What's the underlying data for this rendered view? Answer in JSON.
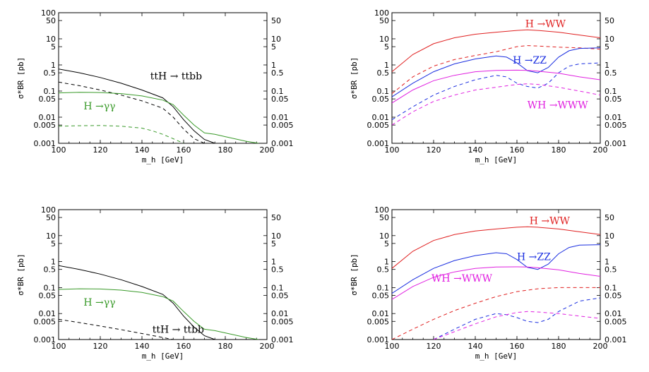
{
  "chart_data": [
    {
      "type": "line",
      "panel": "top-left",
      "xlabel": "m_h [GeV]",
      "ylabel": "σ*BR [pb]",
      "xlim": [
        100,
        200
      ],
      "ylim": [
        0.001,
        100
      ],
      "yscale": "log",
      "x_ticks": [
        100,
        120,
        140,
        160,
        180,
        200
      ],
      "y_ticks": [
        0.001,
        0.005,
        0.01,
        0.05,
        0.1,
        0.5,
        1,
        5,
        10,
        50,
        100
      ],
      "y_tick_labels": [
        "0.001",
        "0.005",
        "0.01",
        "0.05",
        "0.1",
        "0.5",
        "1",
        "5",
        "10",
        "50",
        "100"
      ],
      "right_y_ticks": [
        0.001,
        0.005,
        0.01,
        0.05,
        0.1,
        0.5,
        1,
        5,
        10,
        50
      ],
      "right_y_tick_labels": [
        "0.001",
        "0.005",
        "0.01",
        "0.05",
        "0.1",
        "0.5",
        "1",
        "5",
        "10",
        "50"
      ],
      "series": [
        {
          "name": "ttH → ttbb (solid)",
          "color": "#000000",
          "dash": "solid",
          "x": [
            100,
            110,
            120,
            130,
            140,
            150,
            155,
            160,
            165,
            170,
            175
          ],
          "y": [
            0.7,
            0.5,
            0.33,
            0.2,
            0.11,
            0.055,
            0.025,
            0.008,
            0.003,
            0.0014,
            0.001
          ]
        },
        {
          "name": "ttH → ttbb (dashed)",
          "color": "#000000",
          "dash": "dashed",
          "x": [
            100,
            110,
            120,
            130,
            140,
            150,
            155,
            160,
            165,
            170
          ],
          "y": [
            0.22,
            0.16,
            0.11,
            0.07,
            0.042,
            0.022,
            0.01,
            0.0035,
            0.0015,
            0.001
          ]
        },
        {
          "name": "H → γγ (solid)",
          "color": "#3a9a2a",
          "dash": "solid",
          "x": [
            100,
            110,
            120,
            130,
            140,
            150,
            155,
            160,
            165,
            170,
            175,
            180,
            190,
            196
          ],
          "y": [
            0.085,
            0.09,
            0.088,
            0.08,
            0.065,
            0.045,
            0.03,
            0.012,
            0.005,
            0.0025,
            0.0022,
            0.0018,
            0.0012,
            0.001
          ]
        },
        {
          "name": "H → γγ (dashed)",
          "color": "#3a9a2a",
          "dash": "dashed",
          "x": [
            100,
            110,
            120,
            130,
            140,
            145,
            150,
            155,
            160
          ],
          "y": [
            0.0045,
            0.0047,
            0.0048,
            0.0045,
            0.0038,
            0.003,
            0.0022,
            0.0015,
            0.001
          ]
        }
      ],
      "annotations": [
        {
          "text": "ttH → ttbb",
          "color": "#000000",
          "x": 144,
          "y": 0.28
        },
        {
          "text": "H →γγ",
          "color": "#3a9a2a",
          "x": 112,
          "y": 0.02
        }
      ]
    },
    {
      "type": "line",
      "panel": "top-right",
      "xlabel": "m_h [GeV]",
      "ylabel": "σ*BR [pb]",
      "xlim": [
        100,
        200
      ],
      "ylim": [
        0.001,
        100
      ],
      "yscale": "log",
      "x_ticks": [
        100,
        120,
        140,
        160,
        180,
        200
      ],
      "y_ticks": [
        0.001,
        0.005,
        0.01,
        0.05,
        0.1,
        0.5,
        1,
        5,
        10,
        50,
        100
      ],
      "y_tick_labels": [
        "0.001",
        "0.005",
        "0.01",
        "0.05",
        "0.1",
        "0.5",
        "1",
        "5",
        "10",
        "50",
        "100"
      ],
      "right_y_ticks": [
        0.001,
        0.005,
        0.01,
        0.05,
        0.1,
        0.5,
        1,
        5,
        10,
        50
      ],
      "right_y_tick_labels": [
        "0.001",
        "0.005",
        "0.01",
        "0.05",
        "0.1",
        "0.5",
        "1",
        "5",
        "10",
        "50"
      ],
      "series": [
        {
          "name": "H → WW (solid)",
          "color": "#e02020",
          "dash": "solid",
          "x": [
            100,
            110,
            120,
            130,
            140,
            150,
            160,
            165,
            170,
            180,
            190,
            200
          ],
          "y": [
            0.55,
            2.5,
            6.5,
            11,
            15,
            18,
            21,
            22,
            21,
            18,
            14,
            11
          ]
        },
        {
          "name": "H → WW (dashed)",
          "color": "#e02020",
          "dash": "dashed",
          "x": [
            100,
            110,
            120,
            130,
            140,
            150,
            160,
            165,
            170,
            180,
            190,
            200
          ],
          "y": [
            0.08,
            0.35,
            0.9,
            1.6,
            2.3,
            3.2,
            5,
            5.5,
            5.3,
            4.8,
            4.5,
            4
          ]
        },
        {
          "name": "H → ZZ (solid)",
          "color": "#1a2ee0",
          "dash": "solid",
          "x": [
            100,
            110,
            120,
            130,
            140,
            150,
            155,
            160,
            165,
            170,
            175,
            180,
            185,
            190,
            200
          ],
          "y": [
            0.06,
            0.2,
            0.55,
            1.1,
            1.7,
            2.2,
            2,
            1.2,
            0.6,
            0.5,
            0.8,
            2,
            3.5,
            4.3,
            4.5
          ]
        },
        {
          "name": "H → ZZ (dashed)",
          "color": "#1a2ee0",
          "dash": "dashed",
          "x": [
            100,
            110,
            120,
            130,
            140,
            150,
            155,
            160,
            165,
            170,
            175,
            180,
            185,
            190,
            200
          ],
          "y": [
            0.008,
            0.025,
            0.07,
            0.15,
            0.27,
            0.4,
            0.35,
            0.2,
            0.15,
            0.13,
            0.2,
            0.5,
            0.9,
            1.1,
            1.2
          ]
        },
        {
          "name": "WH → WWW (solid)",
          "color": "#e020e0",
          "dash": "solid",
          "x": [
            100,
            110,
            120,
            130,
            140,
            150,
            160,
            165,
            170,
            180,
            190,
            200
          ],
          "y": [
            0.035,
            0.11,
            0.25,
            0.4,
            0.55,
            0.62,
            0.63,
            0.62,
            0.58,
            0.48,
            0.35,
            0.27
          ]
        },
        {
          "name": "WH → WWW (dashed)",
          "color": "#e020e0",
          "dash": "dashed",
          "x": [
            100,
            110,
            120,
            130,
            140,
            150,
            160,
            165,
            170,
            180,
            190,
            200
          ],
          "y": [
            0.005,
            0.016,
            0.04,
            0.07,
            0.11,
            0.14,
            0.18,
            0.19,
            0.18,
            0.14,
            0.1,
            0.07
          ]
        }
      ],
      "annotations": [
        {
          "text": "H →WW",
          "color": "#e02020",
          "x": 164,
          "y": 28
        },
        {
          "text": "H →ZZ",
          "color": "#1a2ee0",
          "x": 158,
          "y": 1.15
        },
        {
          "text": "WH →WWW",
          "color": "#e020e0",
          "x": 165,
          "y": 0.022
        }
      ]
    },
    {
      "type": "line",
      "panel": "bottom-left",
      "xlabel": "m_h [GeV]",
      "ylabel": "σ*BR [pb]",
      "xlim": [
        100,
        200
      ],
      "ylim": [
        0.001,
        100
      ],
      "yscale": "log",
      "x_ticks": [
        100,
        120,
        140,
        160,
        180,
        200
      ],
      "y_ticks": [
        0.001,
        0.005,
        0.01,
        0.05,
        0.1,
        0.5,
        1,
        5,
        10,
        50,
        100
      ],
      "y_tick_labels": [
        "0.001",
        "0.005",
        "0.01",
        "0.05",
        "0.1",
        "0.5",
        "1",
        "5",
        "10",
        "50",
        "100"
      ],
      "right_y_ticks": [
        0.001,
        0.005,
        0.01,
        0.05,
        0.1,
        0.5,
        1,
        5,
        10,
        50
      ],
      "right_y_tick_labels": [
        "0.001",
        "0.005",
        "0.01",
        "0.05",
        "0.1",
        "0.5",
        "1",
        "5",
        "10",
        "50"
      ],
      "series": [
        {
          "name": "ttH → ttbb (solid)",
          "color": "#000000",
          "dash": "solid",
          "x": [
            100,
            110,
            120,
            130,
            140,
            150,
            155,
            160,
            165,
            170,
            175
          ],
          "y": [
            0.7,
            0.5,
            0.33,
            0.2,
            0.11,
            0.055,
            0.025,
            0.008,
            0.003,
            0.0014,
            0.001
          ]
        },
        {
          "name": "ttH → ttbb (dashed)",
          "color": "#000000",
          "dash": "dashed",
          "x": [
            100,
            110,
            120,
            130,
            140,
            150,
            155
          ],
          "y": [
            0.006,
            0.0045,
            0.0033,
            0.0024,
            0.0017,
            0.0012,
            0.001
          ]
        },
        {
          "name": "H → γγ (solid)",
          "color": "#3a9a2a",
          "dash": "solid",
          "x": [
            100,
            110,
            120,
            130,
            140,
            150,
            155,
            160,
            165,
            170,
            175,
            180,
            190,
            196
          ],
          "y": [
            0.085,
            0.09,
            0.088,
            0.08,
            0.065,
            0.045,
            0.03,
            0.012,
            0.005,
            0.0025,
            0.0022,
            0.0018,
            0.0012,
            0.001
          ]
        }
      ],
      "annotations": [
        {
          "text": "H →γγ",
          "color": "#3a9a2a",
          "x": 112,
          "y": 0.02
        },
        {
          "text": "ttH → ttbb",
          "color": "#000000",
          "x": 145,
          "y": 0.0018
        }
      ]
    },
    {
      "type": "line",
      "panel": "bottom-right",
      "xlabel": "m_h [GeV]",
      "ylabel": "σ*BR [pb]",
      "xlim": [
        100,
        200
      ],
      "ylim": [
        0.001,
        100
      ],
      "yscale": "log",
      "x_ticks": [
        100,
        120,
        140,
        160,
        180,
        200
      ],
      "y_ticks": [
        0.001,
        0.005,
        0.01,
        0.05,
        0.1,
        0.5,
        1,
        5,
        10,
        50,
        100
      ],
      "y_tick_labels": [
        "0.001",
        "0.005",
        "0.01",
        "0.05",
        "0.1",
        "0.5",
        "1",
        "5",
        "10",
        "50",
        "100"
      ],
      "right_y_ticks": [
        0.001,
        0.005,
        0.01,
        0.05,
        0.1,
        0.5,
        1,
        5,
        10,
        50
      ],
      "right_y_tick_labels": [
        "0.001",
        "0.005",
        "0.01",
        "0.05",
        "0.1",
        "0.5",
        "1",
        "5",
        "10",
        "50"
      ],
      "series": [
        {
          "name": "H → WW (solid)",
          "color": "#e02020",
          "dash": "solid",
          "x": [
            100,
            110,
            120,
            130,
            140,
            150,
            160,
            165,
            170,
            180,
            190,
            200
          ],
          "y": [
            0.55,
            2.5,
            6.5,
            11,
            15,
            18,
            21,
            22,
            21,
            18,
            14,
            11
          ]
        },
        {
          "name": "H → WW (dashed)",
          "color": "#e02020",
          "dash": "dashed",
          "x": [
            100,
            110,
            120,
            130,
            140,
            150,
            160,
            170,
            180,
            190,
            200
          ],
          "y": [
            0.001,
            0.0025,
            0.006,
            0.013,
            0.025,
            0.045,
            0.07,
            0.09,
            0.1,
            0.1,
            0.1
          ]
        },
        {
          "name": "H → ZZ (solid)",
          "color": "#1a2ee0",
          "dash": "solid",
          "x": [
            100,
            110,
            120,
            130,
            140,
            150,
            155,
            160,
            165,
            170,
            175,
            180,
            185,
            190,
            200
          ],
          "y": [
            0.06,
            0.2,
            0.55,
            1.1,
            1.7,
            2.2,
            2,
            1.2,
            0.6,
            0.5,
            0.8,
            2,
            3.5,
            4.3,
            4.5
          ]
        },
        {
          "name": "H → ZZ (dashed)",
          "color": "#1a2ee0",
          "dash": "dashed",
          "x": [
            120,
            130,
            140,
            150,
            155,
            160,
            165,
            170,
            175,
            180,
            190,
            200
          ],
          "y": [
            0.001,
            0.0025,
            0.006,
            0.01,
            0.009,
            0.007,
            0.005,
            0.0045,
            0.006,
            0.012,
            0.03,
            0.04
          ]
        },
        {
          "name": "WH → WWW (solid)",
          "color": "#e020e0",
          "dash": "solid",
          "x": [
            100,
            110,
            120,
            130,
            140,
            150,
            160,
            165,
            170,
            180,
            190,
            200
          ],
          "y": [
            0.035,
            0.11,
            0.25,
            0.4,
            0.55,
            0.62,
            0.63,
            0.62,
            0.58,
            0.48,
            0.35,
            0.27
          ]
        },
        {
          "name": "WH → WWW (dashed)",
          "color": "#e020e0",
          "dash": "dashed",
          "x": [
            120,
            130,
            140,
            150,
            160,
            165,
            170,
            180,
            190,
            200
          ],
          "y": [
            0.001,
            0.002,
            0.004,
            0.0075,
            0.011,
            0.012,
            0.0115,
            0.01,
            0.008,
            0.0065
          ]
        }
      ],
      "annotations": [
        {
          "text": "H →WW",
          "color": "#e02020",
          "x": 166,
          "y": 28
        },
        {
          "text": "H →ZZ",
          "color": "#1a2ee0",
          "x": 160,
          "y": 1.15
        },
        {
          "text": "WH →WWW",
          "color": "#e020e0",
          "x": 119,
          "y": 0.17
        }
      ]
    }
  ]
}
